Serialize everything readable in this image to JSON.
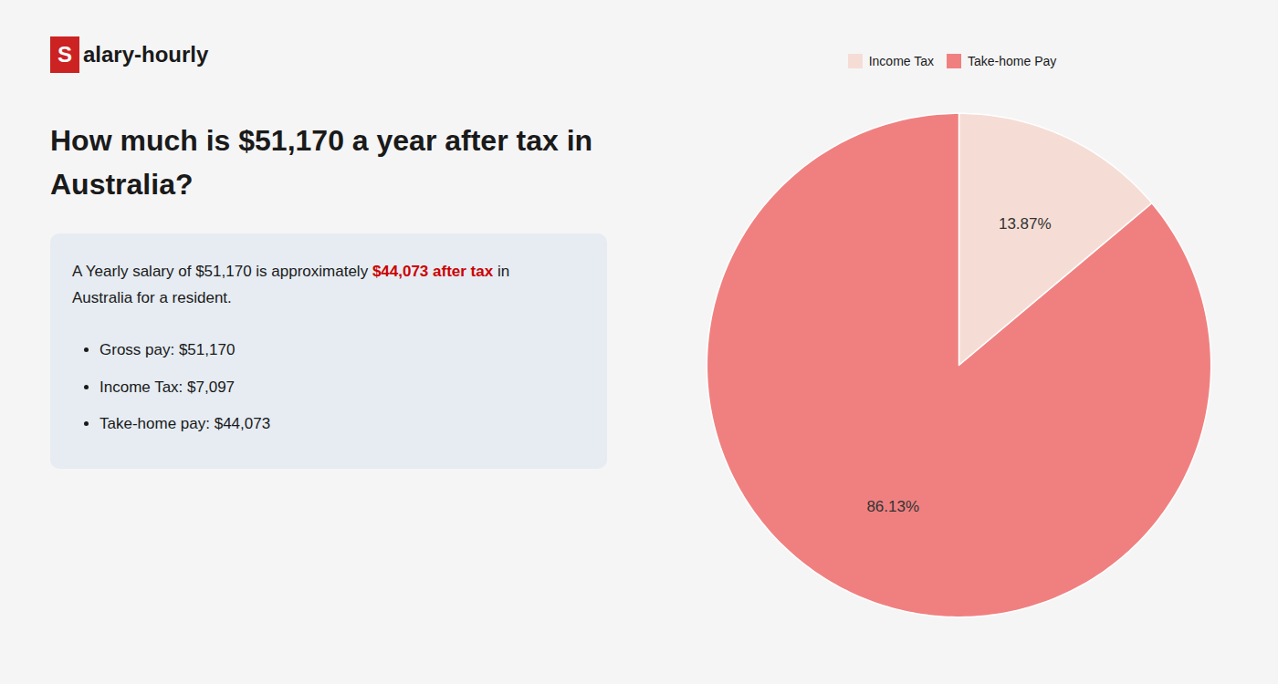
{
  "chart_data": {
    "type": "pie",
    "title": [
      "How much is $51,170 a year after tax in",
      "Australia?"
    ],
    "categories": [
      "Income Tax",
      "Take-home Pay"
    ],
    "values": [
      13.87,
      86.13
    ],
    "value_labels": [
      "13.87%",
      "86.13%"
    ],
    "colors": [
      "#f5ddd5",
      "#f08080"
    ],
    "data_labels": true,
    "legend": "top",
    "annotations": {
      "logo": [
        "S",
        "alary-hourly"
      ],
      "summary": [
        [
          "A Yearly salary of $51,170 is approximately ",
          "$44,073 after tax",
          " in"
        ],
        [
          "Australia for a resident."
        ]
      ],
      "bullets": [
        "Gross pay: $51,170",
        "Income Tax: $7,097",
        "Take-home pay: $44,073"
      ]
    }
  }
}
